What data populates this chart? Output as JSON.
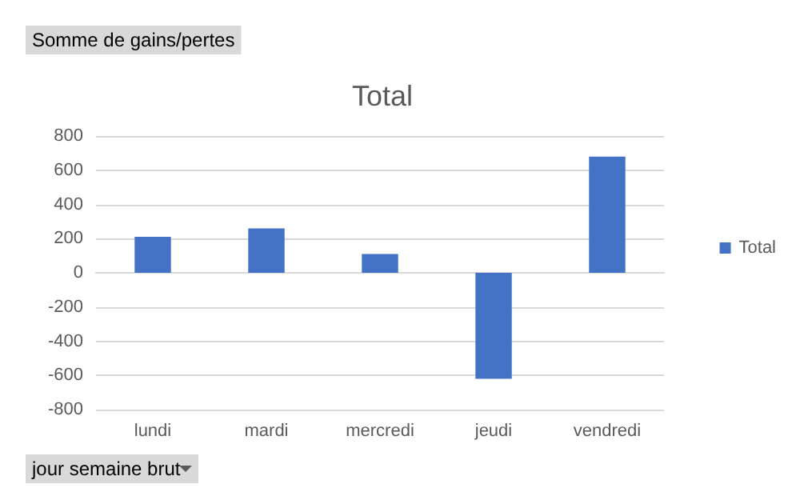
{
  "chart_data": {
    "type": "bar",
    "title": "Total",
    "ylabel": "Somme de gains/pertes",
    "xlabel": "jour semaine brut",
    "categories": [
      "lundi",
      "mardi",
      "mercredi",
      "jeudi",
      "vendredi"
    ],
    "series": [
      {
        "name": "Total",
        "color": "#4472c4",
        "values": [
          210,
          260,
          110,
          -620,
          680
        ]
      }
    ],
    "ylim": [
      -800,
      800
    ],
    "yticks": [
      -800,
      -600,
      -400,
      -200,
      0,
      200,
      400,
      600,
      800
    ],
    "grid": "y",
    "legend": "right"
  }
}
